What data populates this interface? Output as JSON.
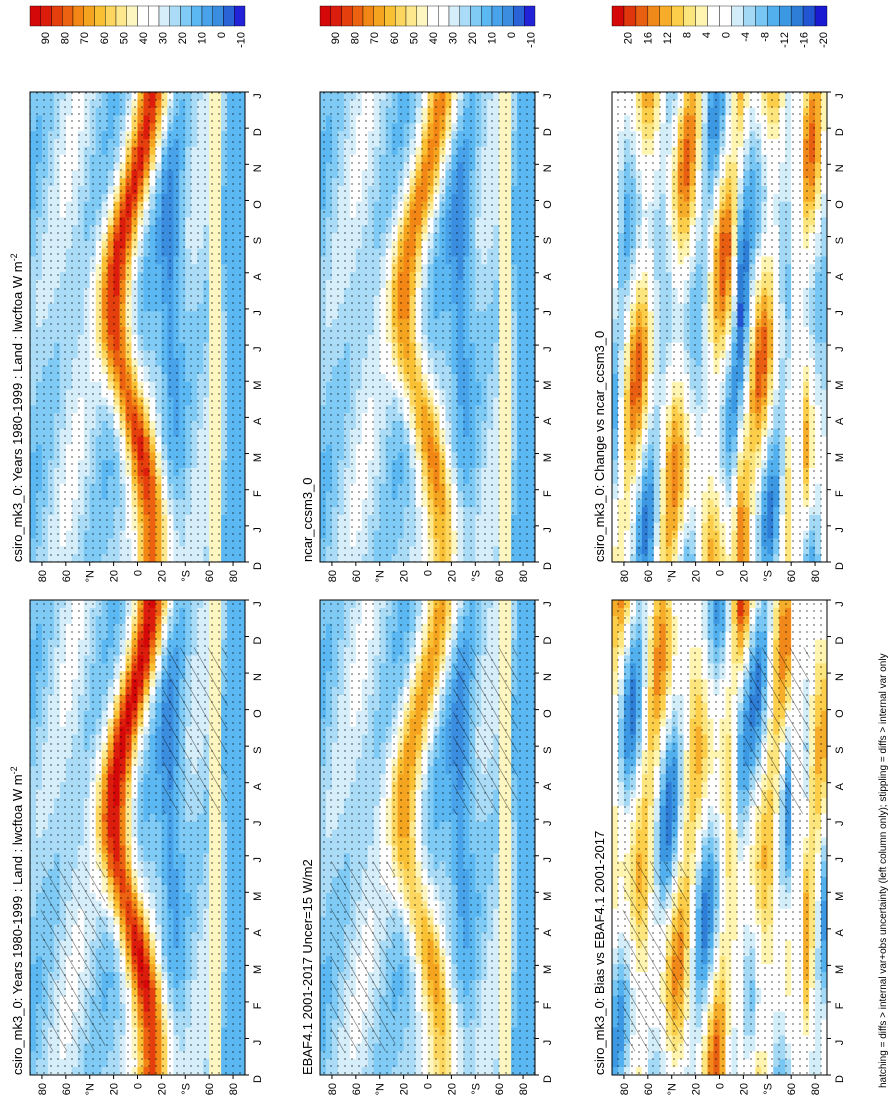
{
  "figure": {
    "footnote": "hatching = diffs > internal var+obs uncertainty (left column only); stippling = diffs > internal var only",
    "orientation": "rotated 90 degrees counter-clockwise"
  },
  "chart_data": [
    {
      "type": "heatmap",
      "title": "csiro_mk3_0: Years 1980-1999 : Land : lwcftoa W m",
      "title_superscript": "-2",
      "x_axis": {
        "label": "",
        "ticks": [
          "D",
          "J",
          "F",
          "M",
          "A",
          "M",
          "J",
          "J",
          "A",
          "S",
          "O",
          "N",
          "D",
          "J"
        ]
      },
      "y_axis": {
        "label": "",
        "ticks": [
          "80",
          "60",
          "°N",
          "20",
          "0",
          "20",
          "°S",
          "60",
          "80"
        ],
        "range_lat": [
          -90,
          90
        ]
      },
      "colorbar": {
        "labels": [
          "90",
          "80",
          "70",
          "60",
          "50",
          "40",
          "30",
          "20",
          "10",
          "0",
          "-10"
        ],
        "range": [
          -15,
          95
        ],
        "step": 5
      },
      "overlays": [
        "stippling",
        "hatching"
      ],
      "description_values": {
        "tropics_max": 85,
        "subtropics_min": 35,
        "midlat": 20,
        "polar": 10
      }
    },
    {
      "type": "heatmap",
      "title": "csiro_mk3_0: Years 1980-1999 : Land : lwcftoa W m",
      "title_superscript": "-2",
      "x_axis": {
        "label": "",
        "ticks": [
          "D",
          "J",
          "F",
          "M",
          "A",
          "M",
          "J",
          "J",
          "A",
          "S",
          "O",
          "N",
          "D",
          "J"
        ]
      },
      "y_axis": {
        "label": "",
        "ticks": [
          "80",
          "60",
          "°N",
          "20",
          "0",
          "20",
          "°S",
          "60",
          "80"
        ],
        "range_lat": [
          -90,
          90
        ]
      },
      "colorbar": {
        "labels": [
          "90",
          "80",
          "70",
          "60",
          "50",
          "40",
          "30",
          "20",
          "10",
          "0",
          "-10"
        ],
        "range": [
          -15,
          95
        ],
        "step": 5
      },
      "overlays": [
        "stippling"
      ],
      "description_values": {
        "tropics_max": 80,
        "subtropics_min": 40,
        "midlat": 20,
        "polar": 10
      }
    },
    {
      "type": "heatmap",
      "title": "EBAF4.1 2001-2017 Uncer=15 W/m2",
      "x_axis": {
        "label": "",
        "ticks": [
          "D",
          "J",
          "F",
          "M",
          "A",
          "M",
          "J",
          "J",
          "A",
          "S",
          "O",
          "N",
          "D",
          "J"
        ]
      },
      "y_axis": {
        "label": "",
        "ticks": [
          "80",
          "60",
          "°N",
          "20",
          "0",
          "20",
          "°S",
          "60",
          "80"
        ],
        "range_lat": [
          -90,
          90
        ]
      },
      "colorbar": {
        "labels": [
          "90",
          "80",
          "70",
          "60",
          "50",
          "40",
          "30",
          "20",
          "10",
          "0",
          "-10"
        ],
        "range": [
          -15,
          95
        ],
        "step": 5
      },
      "overlays": [
        "stippling",
        "hatching"
      ],
      "description_values": {
        "tropics_max": 60,
        "subtropics_min": 20,
        "midlat": 25,
        "polar": 10
      }
    },
    {
      "type": "heatmap",
      "title": "ncar_ccsm3_0",
      "x_axis": {
        "label": "",
        "ticks": [
          "D",
          "J",
          "F",
          "M",
          "A",
          "M",
          "J",
          "J",
          "A",
          "S",
          "O",
          "N",
          "D",
          "J"
        ]
      },
      "y_axis": {
        "label": "",
        "ticks": [
          "80",
          "60",
          "°N",
          "20",
          "0",
          "20",
          "°S",
          "60",
          "80"
        ],
        "range_lat": [
          -90,
          90
        ]
      },
      "colorbar": {
        "labels": [
          "90",
          "80",
          "70",
          "60",
          "50",
          "40",
          "30",
          "20",
          "10",
          "0",
          "-10"
        ],
        "range": [
          -15,
          95
        ],
        "step": 5
      },
      "overlays": [
        "stippling"
      ],
      "description_values": {
        "tropics_max": 65,
        "subtropics_min": 30,
        "midlat": 20,
        "polar": 10
      }
    },
    {
      "type": "heatmap",
      "title": "csiro_mk3_0: Bias vs EBAF4.1 2001-2017",
      "x_axis": {
        "label": "",
        "ticks": [
          "D",
          "J",
          "F",
          "M",
          "A",
          "M",
          "J",
          "J",
          "A",
          "S",
          "O",
          "N",
          "D",
          "J"
        ]
      },
      "y_axis": {
        "label": "",
        "ticks": [
          "80",
          "60",
          "°N",
          "20",
          "0",
          "20",
          "°S",
          "60",
          "80"
        ],
        "range_lat": [
          -90,
          90
        ]
      },
      "colorbar": {
        "labels": [
          "20",
          "16",
          "12",
          "8",
          "4",
          "0",
          "-4",
          "-8",
          "-12",
          "-16",
          "-20"
        ],
        "range": [
          -22,
          22
        ],
        "step": 2
      },
      "overlays": [
        "stippling",
        "hatching"
      ],
      "description_values": {
        "max_bias": 22,
        "min_bias": -10
      }
    },
    {
      "type": "heatmap",
      "title": "csiro_mk3_0: Change vs ncar_ccsm3_0",
      "x_axis": {
        "label": "",
        "ticks": [
          "D",
          "J",
          "F",
          "M",
          "A",
          "M",
          "J",
          "J",
          "A",
          "S",
          "O",
          "N",
          "D",
          "J"
        ]
      },
      "y_axis": {
        "label": "",
        "ticks": [
          "80",
          "60",
          "°N",
          "20",
          "0",
          "20",
          "°S",
          "60",
          "80"
        ],
        "range_lat": [
          -90,
          90
        ]
      },
      "colorbar": {
        "labels": [
          "20",
          "16",
          "12",
          "8",
          "4",
          "0",
          "-4",
          "-8",
          "-12",
          "-16",
          "-20"
        ],
        "range": [
          -22,
          22
        ],
        "step": 2
      },
      "overlays": [
        "stippling"
      ],
      "description_values": {
        "max_diff": 20,
        "min_diff": -20
      }
    }
  ]
}
